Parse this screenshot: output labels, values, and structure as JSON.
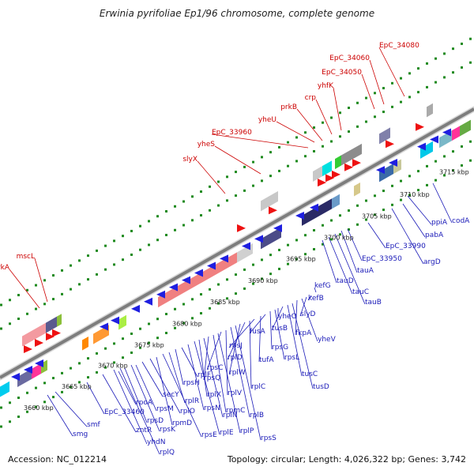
{
  "title": "Erwinia pyrifoliae Ep1/96 chromosome, complete genome",
  "footer": {
    "accession": "Accession: NC_012214",
    "topology": "Topology: circular; Length: 4,026,322 bp; Genes: 3,742"
  },
  "colors": {
    "forward_gene": "#ee1111",
    "reverse_gene": "#1f1fe0",
    "label_forward": "#cc0000",
    "label_reverse": "#1a1ab8",
    "guide_dots": "#1e8a1e",
    "backbone": "#8c8c8c"
  },
  "kbp_ticks": [
    "3660 kbp",
    "3665 kbp",
    "3670 kbp",
    "3675 kbp",
    "3680 kbp",
    "3685 kbp",
    "3690 kbp",
    "3695 kbp",
    "3700 kbp",
    "3705 kbp",
    "3710 kbp",
    "3715 kbp"
  ],
  "genes_forward": [
    "trkA",
    "mscL",
    "slyX",
    "yheS",
    "EpC_33960",
    "yheU",
    "prkB",
    "crp",
    "yhfK",
    "EpC_34050",
    "EpC_34060",
    "EpC_34080"
  ],
  "genes_reverse": [
    "smg",
    "smf",
    "EpC_33460",
    "zntR",
    "yhdN",
    "rplQ",
    "rpoA",
    "rpsD",
    "rpsK",
    "rpsM",
    "secY",
    "rplO",
    "rpmD",
    "rpsE",
    "rplR",
    "rpsH",
    "rplF",
    "rpsN",
    "rplE",
    "rplX",
    "rplN",
    "rpsQ",
    "rpmC",
    "rplP",
    "rpsC",
    "rplV",
    "rplB",
    "rpsS",
    "rplW",
    "rplD",
    "rplC",
    "rpsJ",
    "tufA",
    "fusA",
    "rpsG",
    "rpsL",
    "yheO",
    "tusB",
    "tusC",
    "tusD",
    "fkpA",
    "yheV",
    "slyD",
    "kefB",
    "kefG",
    "tauD",
    "tauC",
    "tauB",
    "tauA",
    "EpC_33950",
    "EpC_33990",
    "argD",
    "pabA",
    "ppiA",
    "codA"
  ]
}
